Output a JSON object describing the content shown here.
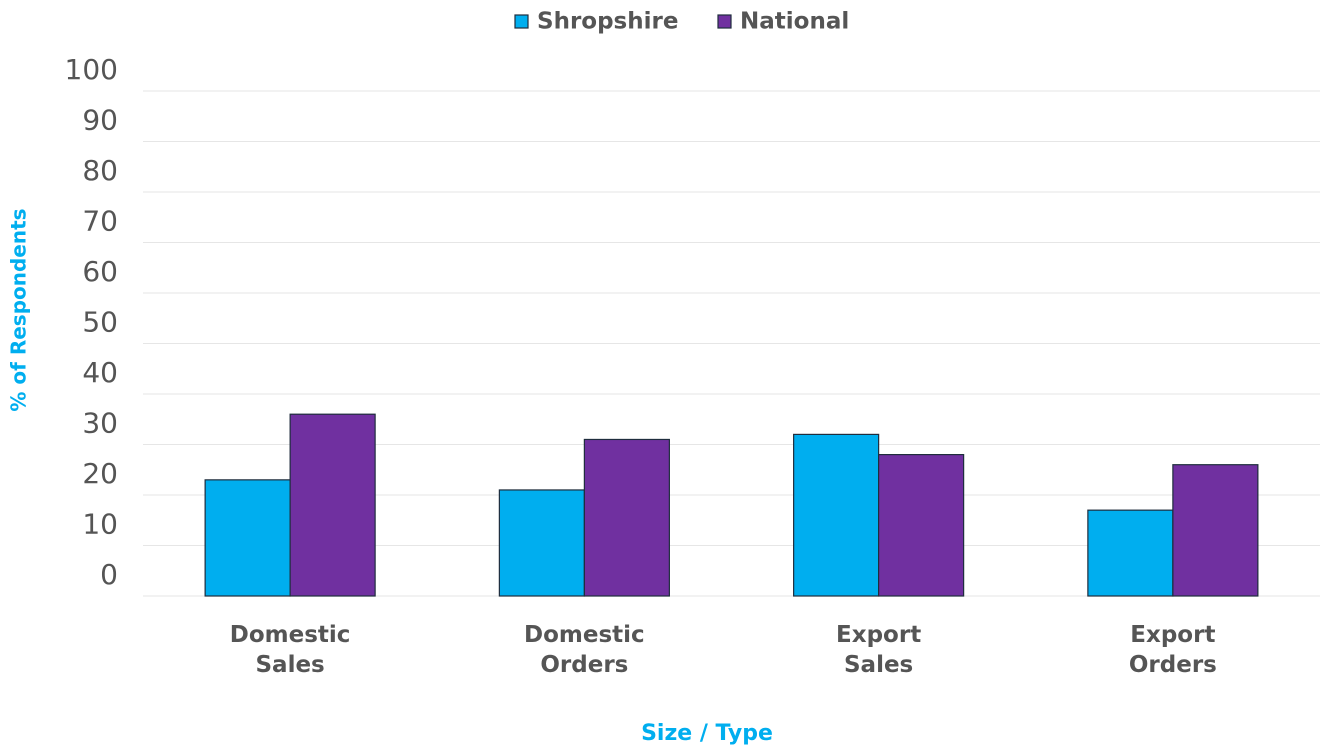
{
  "chart_data": {
    "type": "bar",
    "categories": [
      "Domestic Sales",
      "Domestic Orders",
      "Export Sales",
      "Export Orders"
    ],
    "series": [
      {
        "name": "Shropshire",
        "color": "#00aeef",
        "values": [
          23,
          21,
          32,
          17
        ]
      },
      {
        "name": "National",
        "color": "#7030a0",
        "values": [
          36,
          31,
          28,
          26
        ]
      }
    ],
    "ylabel": "% of Respondents",
    "xlabel": "Size / Type",
    "ylim": [
      0,
      100
    ],
    "yticks": [
      0,
      10,
      20,
      30,
      40,
      50,
      60,
      70,
      80,
      90,
      100
    ],
    "grid": true,
    "legend": "top"
  }
}
